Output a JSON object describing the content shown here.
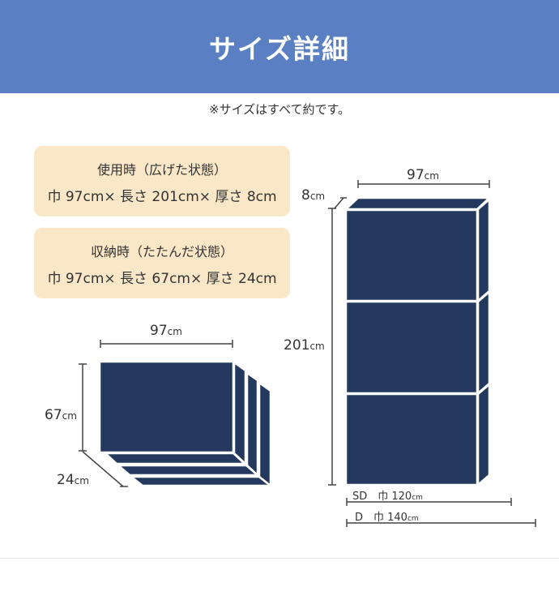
{
  "header": {
    "title": "サイズ詳細"
  },
  "note": "※サイズはすべて約です。",
  "spec_boxes": [
    {
      "title": "使用時（広げた状態）",
      "dims": "巾 97cm× 長さ 201cm× 厚さ 8cm"
    },
    {
      "title": "収納時（たたんだ状態）",
      "dims": "巾 97cm× 長さ 67cm× 厚さ 24cm"
    }
  ],
  "folded": {
    "width": "97",
    "height": "67",
    "depth": "24",
    "unit": "cm"
  },
  "unfolded": {
    "width": "97",
    "length": "201",
    "thickness": "8",
    "unit": "cm",
    "sizes": [
      {
        "label": "SD　巾 120",
        "unit": "cm"
      },
      {
        "label": "D　巾 140",
        "unit": "cm"
      }
    ]
  },
  "colors": {
    "header": "#5a7fc2",
    "mattress": "#233a5e",
    "box": "#f9e7c8"
  }
}
